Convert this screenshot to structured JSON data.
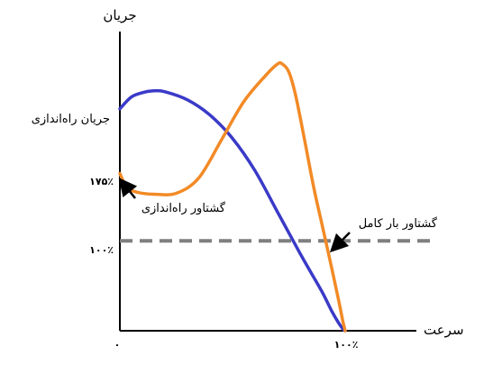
{
  "chart_data": {
    "type": "line",
    "xlabel": "سرعت",
    "ylabel": "جریان",
    "x_ticks": [
      "۰",
      "۱۰۰٪"
    ],
    "y_ticks": [
      "۱۷۵٪",
      "۱۰۰٪"
    ],
    "y_ticks_values": [
      175,
      100
    ],
    "xlim": [
      0,
      100
    ],
    "ylim": [
      0,
      355
    ],
    "grid": false,
    "annotations": {
      "starting_current": "جریان راه‌اندازی",
      "starting_torque": "گشتاور راه‌اندازی",
      "full_load_torque": "گشتاور بار کامل"
    },
    "series": [
      {
        "color": "#3a3ac8",
        "x": [
          0,
          5,
          10,
          15,
          20,
          30,
          40,
          50,
          60,
          70,
          80,
          85,
          90,
          94,
          97,
          99,
          100
        ],
        "y": [
          247,
          260,
          265,
          267,
          266,
          257,
          240,
          214,
          178,
          132,
          86,
          64,
          42,
          22,
          9,
          2,
          0
        ]
      },
      {
        "color": "#f28a26",
        "x": [
          0,
          3,
          8,
          15,
          25,
          35,
          45,
          55,
          65,
          70,
          72,
          75,
          78,
          82,
          86,
          90,
          94,
          97,
          99,
          100
        ],
        "y": [
          175,
          160,
          154,
          152,
          153,
          170,
          212,
          255,
          285,
          297,
          297,
          288,
          262,
          212,
          160,
          115,
          70,
          35,
          10,
          0
        ]
      }
    ],
    "reference_lines": [
      {
        "y": 100,
        "style": "dashed",
        "color": "#7f7f7f"
      }
    ]
  }
}
